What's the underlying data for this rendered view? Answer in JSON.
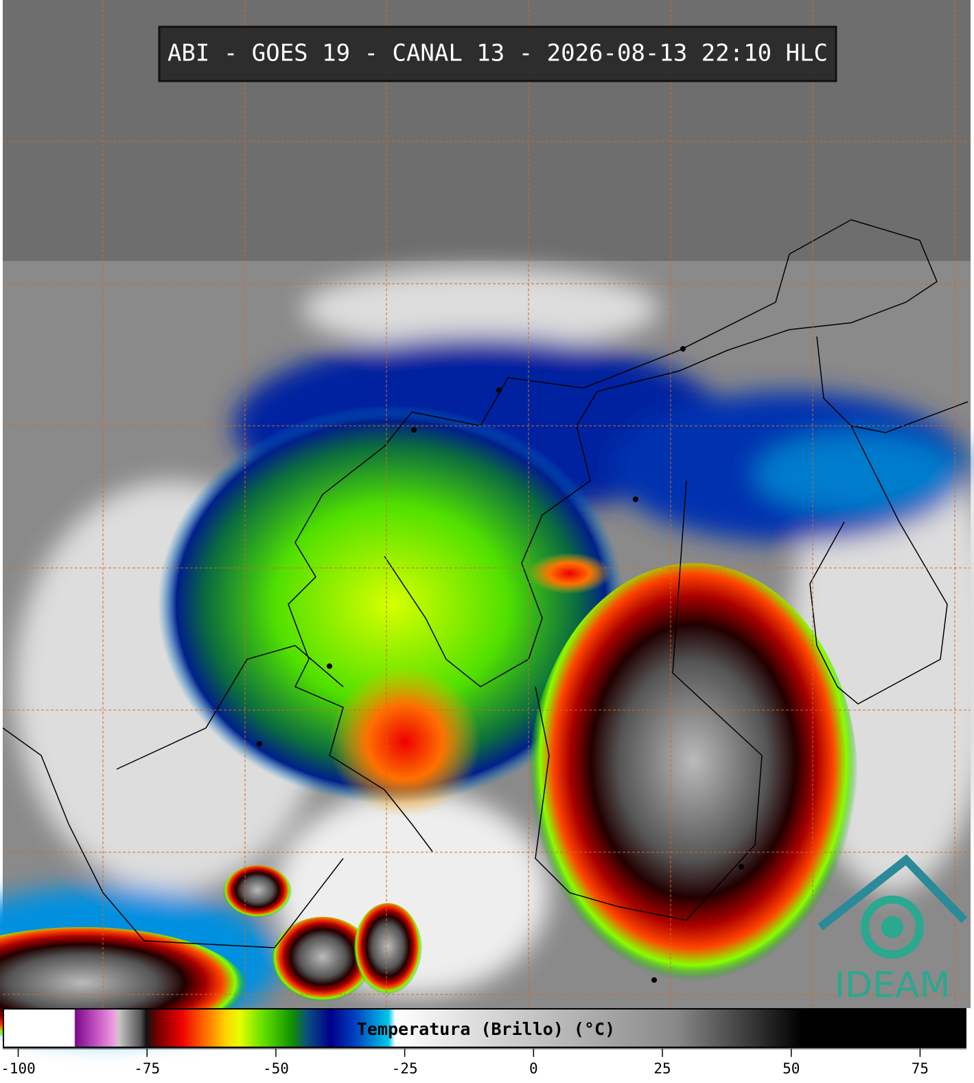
{
  "header": {
    "title": "ABI - GOES 19 - CANAL 13 - 2026-08-13 22:10 HLC"
  },
  "colorbar": {
    "label": "Temperatura (Brillo) (°C)",
    "lim": [
      -103,
      84
    ],
    "ticks": [
      -100,
      -75,
      -50,
      -25,
      0,
      25,
      50,
      75
    ]
  },
  "logo": {
    "text": "IDEAM"
  }
}
